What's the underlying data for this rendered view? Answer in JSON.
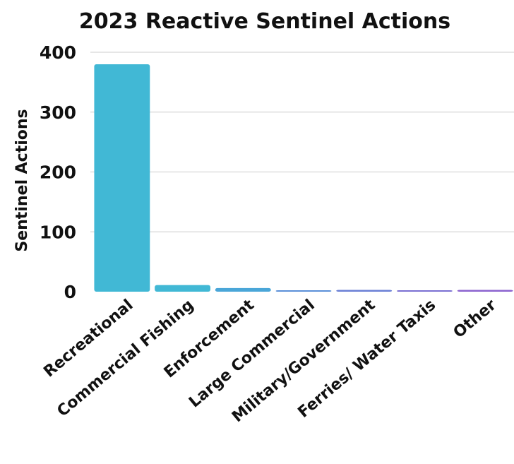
{
  "chart_data": {
    "type": "bar",
    "title": "2023 Reactive Sentinel Actions",
    "xlabel": "",
    "ylabel": "Sentinel Actions",
    "ylim": [
      0,
      400
    ],
    "yticks": [
      0,
      100,
      200,
      300,
      400
    ],
    "grid": true,
    "categories": [
      "Recreational",
      "Commercial Fishing",
      "Enforcement",
      "Large Commercial",
      "Military/Government",
      "Ferries/ Water Taxis",
      "Other"
    ],
    "values": [
      380,
      11,
      6,
      2,
      3,
      2,
      3
    ],
    "colors": [
      "#41b8d5",
      "#41b8d5",
      "#4aa6d8",
      "#5a8fd8",
      "#6a7fd6",
      "#7a6fd2",
      "#8b63cf"
    ]
  }
}
